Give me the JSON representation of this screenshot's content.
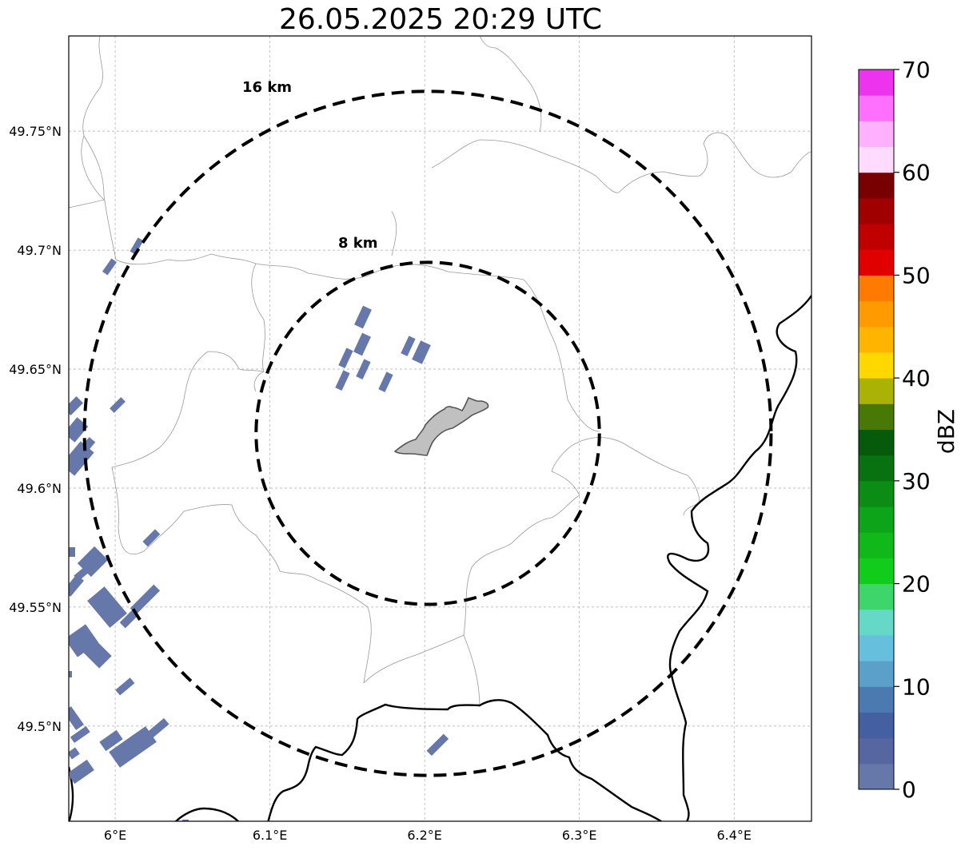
{
  "title": "26.05.2025 20:29 UTC",
  "map": {
    "lon_range": [
      5.97,
      6.45
    ],
    "lat_range": [
      49.46,
      49.79
    ],
    "grid": true,
    "lat_ticks": [
      {
        "value": 49.5,
        "label": "49.5°N"
      },
      {
        "value": 49.55,
        "label": "49.55°N"
      },
      {
        "value": 49.6,
        "label": "49.6°N"
      },
      {
        "value": 49.65,
        "label": "49.65°N"
      },
      {
        "value": 49.7,
        "label": "49.7°N"
      },
      {
        "value": 49.75,
        "label": "49.75°N"
      }
    ],
    "lon_ticks": [
      {
        "value": 6.0,
        "label": "6°E"
      },
      {
        "value": 6.1,
        "label": "6.1°E"
      },
      {
        "value": 6.2,
        "label": "6.2°E"
      },
      {
        "value": 6.3,
        "label": "6.3°E"
      },
      {
        "value": 6.4,
        "label": "6.4°E"
      }
    ],
    "center": {
      "lon": 6.202,
      "lat": 49.623
    },
    "rings": [
      {
        "radius_km": 8,
        "label": "8 km"
      },
      {
        "radius_km": 16,
        "label": "16 km"
      }
    ]
  },
  "colorbar": {
    "label": "dBZ",
    "min": 0,
    "max": 70,
    "ticks": [
      {
        "value": 0,
        "label": "0"
      },
      {
        "value": 10,
        "label": "10"
      },
      {
        "value": 20,
        "label": "20"
      },
      {
        "value": 30,
        "label": "30"
      },
      {
        "value": 40,
        "label": "40"
      },
      {
        "value": 50,
        "label": "50"
      },
      {
        "value": 60,
        "label": "60"
      },
      {
        "value": 70,
        "label": "70"
      }
    ],
    "colors": [
      "#6677aa",
      "#5566a0",
      "#4460a0",
      "#4a7ab0",
      "#5aa0c8",
      "#66c0dd",
      "#66d8c8",
      "#3ed66a",
      "#12cc1c",
      "#10b81a",
      "#0ca418",
      "#0b8c14",
      "#087210",
      "#055a0c",
      "#487806",
      "#aab206",
      "#ffd800",
      "#ffb400",
      "#ff9a00",
      "#ff7a00",
      "#e00000",
      "#c00000",
      "#a00000",
      "#780000",
      "#ffdcff",
      "#ffb0ff",
      "#ff70ff",
      "#ee33ee"
    ]
  },
  "colors": {
    "echo": "#6677aa",
    "city": "#c0c0c0",
    "border": "#000000",
    "admin": "#999999"
  }
}
